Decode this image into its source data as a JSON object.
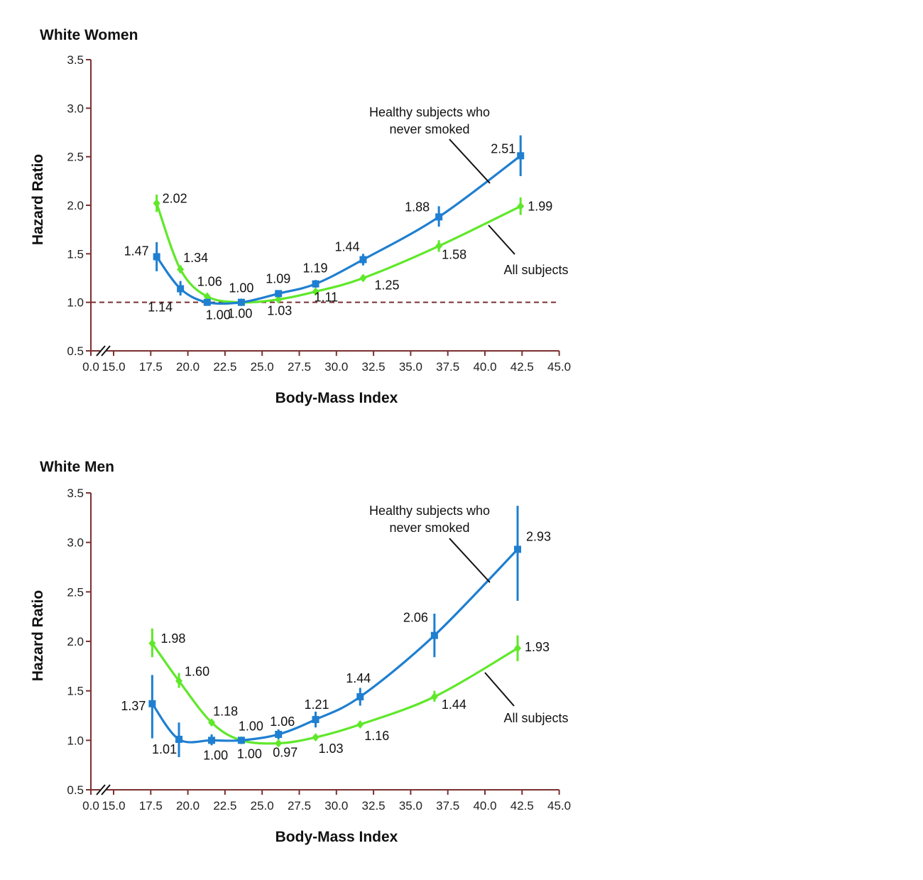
{
  "colors": {
    "healthy_series": "#1f7fd0",
    "all_series": "#5fe82a",
    "axis": "#7a3030",
    "reference_line": "#7a3030",
    "text": "#111111"
  },
  "chart_data": [
    {
      "type": "line",
      "title": "White Women",
      "xlabel": "Body-Mass Index",
      "ylabel": "Hazard Ratio",
      "x_ticks": [
        "0.0",
        "15.0",
        "17.5",
        "20.0",
        "22.5",
        "25.0",
        "27.5",
        "30.0",
        "32.5",
        "35.0",
        "37.5",
        "40.0",
        "42.5",
        "45.0"
      ],
      "y_ticks": [
        "0.5",
        "1.0",
        "1.5",
        "2.0",
        "2.5",
        "3.0",
        "3.5"
      ],
      "xlim": [
        15.0,
        45.0
      ],
      "ylim": [
        0.5,
        3.5
      ],
      "x_axis_break": true,
      "reference_line": 1.0,
      "grid": false,
      "series": [
        {
          "name": "Healthy subjects who never smoked",
          "annotation_lines": [
            "Healthy subjects who",
            "never smoked"
          ],
          "color": "#1f7fd0",
          "marker": "square",
          "x": [
            17.9,
            19.5,
            21.3,
            23.6,
            26.1,
            28.6,
            31.8,
            36.9,
            42.4
          ],
          "y": [
            1.47,
            1.14,
            1.0,
            1.0,
            1.09,
            1.19,
            1.44,
            1.88,
            2.51
          ],
          "ci_low": [
            1.32,
            1.07,
            0.97,
            0.98,
            1.06,
            1.15,
            1.38,
            1.78,
            2.3
          ],
          "ci_high": [
            1.62,
            1.22,
            1.03,
            1.02,
            1.12,
            1.23,
            1.5,
            1.99,
            2.72
          ],
          "labels": [
            "1.47",
            "1.14",
            "1.00",
            "1.00",
            "1.09",
            "1.19",
            "1.44",
            "1.88",
            "2.51"
          ]
        },
        {
          "name": "All subjects",
          "annotation_lines": [
            "All subjects"
          ],
          "color": "#5fe82a",
          "marker": "diamond",
          "x": [
            17.9,
            19.5,
            21.3,
            23.6,
            26.1,
            28.6,
            31.8,
            36.9,
            42.4
          ],
          "y": [
            2.02,
            1.34,
            1.06,
            1.0,
            1.03,
            1.11,
            1.25,
            1.58,
            1.99
          ],
          "ci_low": [
            1.93,
            1.3,
            1.04,
            0.99,
            1.02,
            1.09,
            1.22,
            1.52,
            1.9
          ],
          "ci_high": [
            2.11,
            1.38,
            1.08,
            1.01,
            1.04,
            1.13,
            1.28,
            1.64,
            2.08
          ],
          "labels": [
            "2.02",
            "1.34",
            "1.06",
            "1.00",
            "1.03",
            "1.11",
            "1.25",
            "1.58",
            "1.99"
          ]
        }
      ]
    },
    {
      "type": "line",
      "title": "White Men",
      "xlabel": "Body-Mass Index",
      "ylabel": "Hazard Ratio",
      "x_ticks": [
        "0.0",
        "15.0",
        "17.5",
        "20.0",
        "22.5",
        "25.0",
        "27.5",
        "30.0",
        "32.5",
        "35.0",
        "37.5",
        "40.0",
        "42.5",
        "45.0"
      ],
      "y_ticks": [
        "0.5",
        "1.0",
        "1.5",
        "2.0",
        "2.5",
        "3.0",
        "3.5"
      ],
      "xlim": [
        15.0,
        45.0
      ],
      "ylim": [
        0.5,
        3.5
      ],
      "x_axis_break": true,
      "reference_line": null,
      "grid": false,
      "series": [
        {
          "name": "Healthy subjects who never smoked",
          "annotation_lines": [
            "Healthy subjects who",
            "never smoked"
          ],
          "color": "#1f7fd0",
          "marker": "square",
          "x": [
            17.6,
            19.4,
            21.6,
            23.6,
            26.1,
            28.6,
            31.6,
            36.6,
            42.2
          ],
          "y": [
            1.37,
            1.01,
            1.0,
            1.0,
            1.06,
            1.21,
            1.44,
            2.06,
            2.93
          ],
          "ci_low": [
            1.02,
            0.83,
            0.95,
            0.98,
            1.01,
            1.13,
            1.35,
            1.84,
            2.41
          ],
          "ci_high": [
            1.66,
            1.18,
            1.06,
            1.02,
            1.11,
            1.29,
            1.53,
            2.28,
            3.37
          ],
          "labels": [
            "1.37",
            "1.01",
            "1.00",
            "1.00",
            "1.06",
            "1.21",
            "1.44",
            "2.06",
            "2.93"
          ]
        },
        {
          "name": "All subjects",
          "annotation_lines": [
            "All subjects"
          ],
          "color": "#5fe82a",
          "marker": "diamond",
          "x": [
            17.6,
            19.4,
            21.6,
            23.6,
            26.1,
            28.6,
            31.6,
            36.6,
            42.2
          ],
          "y": [
            1.98,
            1.6,
            1.18,
            1.0,
            0.97,
            1.03,
            1.16,
            1.44,
            1.93
          ],
          "ci_low": [
            1.84,
            1.53,
            1.15,
            0.99,
            0.96,
            1.01,
            1.14,
            1.39,
            1.8
          ],
          "ci_high": [
            2.13,
            1.68,
            1.21,
            1.01,
            0.99,
            1.05,
            1.19,
            1.5,
            2.06
          ],
          "labels": [
            "1.98",
            "1.60",
            "1.18",
            "1.00",
            "0.97",
            "1.03",
            "1.16",
            "1.44",
            "1.93"
          ]
        }
      ]
    }
  ]
}
